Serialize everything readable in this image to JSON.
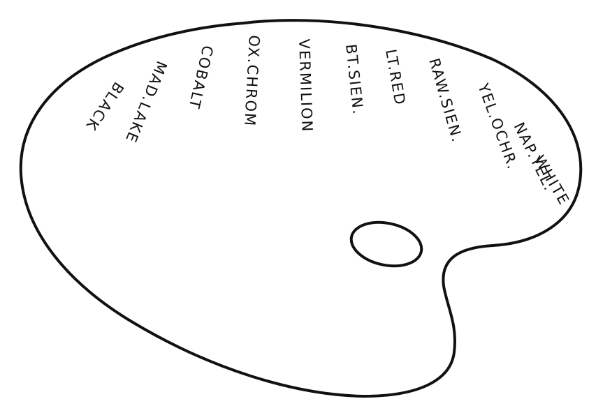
{
  "palette": {
    "outline_color": "#111111",
    "fill_color": "#ffffff",
    "paint_labels": [
      "WHITE",
      "NAP.YEL.",
      "YEL.OCHR.",
      "RAW.SIEN.",
      "LT.RED",
      "BT.SIEN.",
      "VERMILION",
      "OX.CHROM",
      "COBALT",
      "MAD.LAKE",
      "BLACK"
    ]
  }
}
